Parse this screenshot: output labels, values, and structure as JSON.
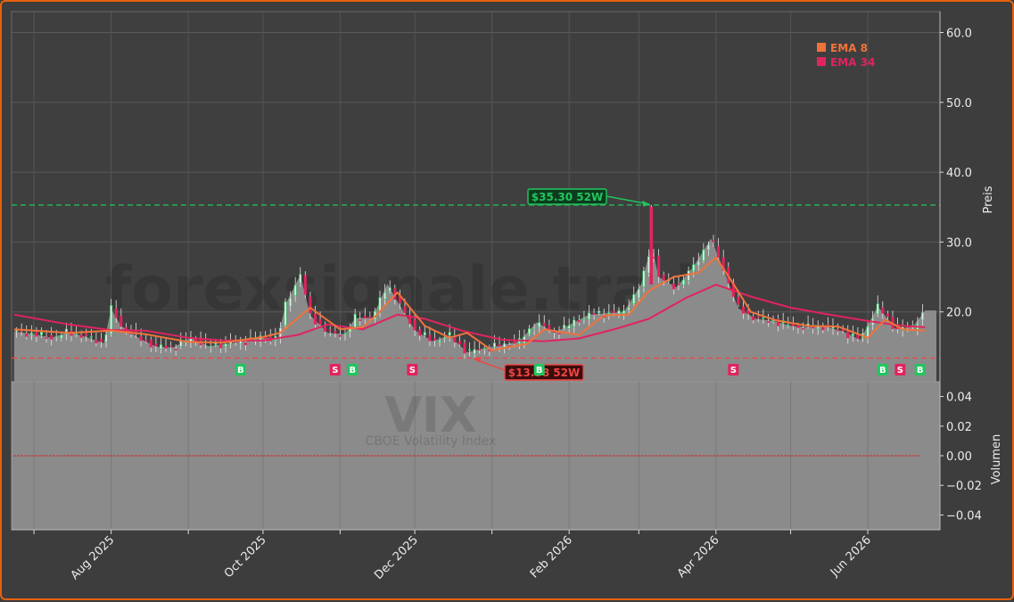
{
  "chart_data": {
    "type": "candlestick",
    "symbol": "VIX",
    "subtitle": "CBOE Volatility Index",
    "watermark": "forexsignale.trade",
    "y_label": "Preis",
    "volume_label": "Volumen",
    "y_ticks": [
      20.0,
      30.0,
      40.0,
      50.0,
      60.0
    ],
    "y_tick_labels": [
      "20.0",
      "30.0",
      "40.0",
      "50.0",
      "60.0"
    ],
    "ylim": [
      10.0,
      63.0
    ],
    "volume_ticks": [
      0.04,
      0.02,
      0.0,
      -0.02,
      -0.04
    ],
    "volume_tick_labels": [
      "0.04",
      "0.02",
      "0.00",
      "−0.02",
      "−0.04"
    ],
    "volume_ylim": [
      -0.05,
      0.05
    ],
    "x_range": [
      "2025-06-22",
      "2026-06-30"
    ],
    "x_ticks": [
      "2025-07-01",
      "2025-08-01",
      "2025-09-01",
      "2025-10-01",
      "2025-11-01",
      "2025-12-01",
      "2026-01-01",
      "2026-02-01",
      "2026-03-01",
      "2026-04-01",
      "2026-05-01",
      "2026-06-01"
    ],
    "x_tick_labels": [
      "",
      "Aug 2025",
      "",
      "Oct 2025",
      "",
      "Dec 2025",
      "",
      "Feb 2026",
      "",
      "Apr 2026",
      "",
      "Jun 2026"
    ],
    "close_series": [
      [
        "2025-06-23",
        17.2
      ],
      [
        "2025-07-01",
        16.8
      ],
      [
        "2025-07-08",
        16.3
      ],
      [
        "2025-07-15",
        17.1
      ],
      [
        "2025-07-22",
        16.4
      ],
      [
        "2025-07-29",
        15.5
      ],
      [
        "2025-08-01",
        20.4
      ],
      [
        "2025-08-05",
        18.0
      ],
      [
        "2025-08-12",
        16.3
      ],
      [
        "2025-08-19",
        15.0
      ],
      [
        "2025-08-26",
        14.9
      ],
      [
        "2025-09-02",
        16.3
      ],
      [
        "2025-09-09",
        15.1
      ],
      [
        "2025-09-16",
        15.4
      ],
      [
        "2025-09-23",
        15.8
      ],
      [
        "2025-09-30",
        16.3
      ],
      [
        "2025-10-07",
        16.2
      ],
      [
        "2025-10-10",
        21.0
      ],
      [
        "2025-10-16",
        25.3
      ],
      [
        "2025-10-20",
        19.5
      ],
      [
        "2025-10-27",
        17.0
      ],
      [
        "2025-11-03",
        16.8
      ],
      [
        "2025-11-07",
        19.1
      ],
      [
        "2025-11-14",
        19.2
      ],
      [
        "2025-11-20",
        24.0
      ],
      [
        "2025-11-24",
        21.5
      ],
      [
        "2025-12-01",
        17.4
      ],
      [
        "2025-12-08",
        15.8
      ],
      [
        "2025-12-15",
        16.6
      ],
      [
        "2025-12-22",
        14.2
      ],
      [
        "2025-12-29",
        14.8
      ],
      [
        "2026-01-05",
        15.2
      ],
      [
        "2026-01-12",
        15.8
      ],
      [
        "2026-01-19",
        18.5
      ],
      [
        "2026-01-26",
        17.0
      ],
      [
        "2026-02-02",
        18.3
      ],
      [
        "2026-02-09",
        19.6
      ],
      [
        "2026-02-16",
        19.8
      ],
      [
        "2026-02-23",
        20.0
      ],
      [
        "2026-03-02",
        24.0
      ],
      [
        "2026-03-06",
        29.5
      ],
      [
        "2026-03-09",
        25.0
      ],
      [
        "2026-03-16",
        23.5
      ],
      [
        "2026-03-23",
        26.5
      ],
      [
        "2026-03-30",
        30.5
      ],
      [
        "2026-04-03",
        27.0
      ],
      [
        "2026-04-10",
        20.5
      ],
      [
        "2026-04-17",
        19.0
      ],
      [
        "2026-04-24",
        18.7
      ],
      [
        "2026-05-01",
        18.0
      ],
      [
        "2026-05-08",
        17.8
      ],
      [
        "2026-05-15",
        17.9
      ],
      [
        "2026-05-22",
        17.2
      ],
      [
        "2026-05-29",
        16.0
      ],
      [
        "2026-06-05",
        20.8
      ],
      [
        "2026-06-12",
        17.6
      ],
      [
        "2026-06-19",
        17.8
      ],
      [
        "2026-06-24",
        20.2
      ]
    ],
    "ema_8_series": [
      [
        "2025-06-23",
        17.5
      ],
      [
        "2025-07-15",
        17.0
      ],
      [
        "2025-08-01",
        17.3
      ],
      [
        "2025-08-15",
        16.8
      ],
      [
        "2025-09-01",
        15.7
      ],
      [
        "2025-09-15",
        15.6
      ],
      [
        "2025-10-01",
        16.4
      ],
      [
        "2025-10-08",
        17.0
      ],
      [
        "2025-10-20",
        20.6
      ],
      [
        "2025-11-01",
        17.5
      ],
      [
        "2025-11-10",
        17.8
      ],
      [
        "2025-11-15",
        19.3
      ],
      [
        "2025-11-24",
        22.8
      ],
      [
        "2025-12-05",
        18.0
      ],
      [
        "2025-12-15",
        16.3
      ],
      [
        "2025-12-22",
        17.0
      ],
      [
        "2026-01-01",
        14.5
      ],
      [
        "2026-01-15",
        15.4
      ],
      [
        "2026-01-22",
        17.5
      ],
      [
        "2026-02-05",
        16.7
      ],
      [
        "2026-02-15",
        19.5
      ],
      [
        "2026-02-25",
        19.6
      ],
      [
        "2026-03-05",
        23.0
      ],
      [
        "2026-03-15",
        25.0
      ],
      [
        "2026-03-25",
        25.6
      ],
      [
        "2026-04-01",
        27.8
      ],
      [
        "2026-04-08",
        24.0
      ],
      [
        "2026-04-15",
        20.0
      ],
      [
        "2026-04-25",
        18.8
      ],
      [
        "2026-05-08",
        18.0
      ],
      [
        "2026-05-20",
        17.9
      ],
      [
        "2026-06-01",
        16.3
      ],
      [
        "2026-06-08",
        18.9
      ],
      [
        "2026-06-15",
        17.5
      ],
      [
        "2026-06-24",
        17.3
      ]
    ],
    "ema_34_series": [
      [
        "2025-06-23",
        19.6
      ],
      [
        "2025-07-15",
        18.2
      ],
      [
        "2025-08-01",
        17.4
      ],
      [
        "2025-08-15",
        17.3
      ],
      [
        "2025-09-01",
        16.3
      ],
      [
        "2025-09-15",
        15.9
      ],
      [
        "2025-10-01",
        15.9
      ],
      [
        "2025-10-15",
        16.7
      ],
      [
        "2025-10-27",
        18.2
      ],
      [
        "2025-11-10",
        17.5
      ],
      [
        "2025-11-24",
        19.6
      ],
      [
        "2025-12-05",
        19.0
      ],
      [
        "2025-12-20",
        17.3
      ],
      [
        "2026-01-05",
        16.0
      ],
      [
        "2026-01-22",
        15.8
      ],
      [
        "2026-02-05",
        16.2
      ],
      [
        "2026-02-20",
        17.6
      ],
      [
        "2026-03-05",
        19.0
      ],
      [
        "2026-03-20",
        22.0
      ],
      [
        "2026-04-01",
        23.9
      ],
      [
        "2026-04-15",
        22.2
      ],
      [
        "2026-05-01",
        20.6
      ],
      [
        "2026-05-15",
        19.7
      ],
      [
        "2026-06-01",
        18.7
      ],
      [
        "2026-06-15",
        18.0
      ],
      [
        "2026-06-24",
        17.8
      ]
    ],
    "candle_sample_step_days": 2,
    "high_52w": {
      "value": 35.3,
      "date": "2026-03-06",
      "label": "$35.30 52W",
      "color": "#22c55e"
    },
    "low_52w": {
      "value": 13.38,
      "date": "2025-12-24",
      "label": "$13.38 52W",
      "color": "#ef4444"
    },
    "signals": [
      {
        "date": "2025-09-22",
        "type": "B"
      },
      {
        "date": "2025-10-30",
        "type": "S"
      },
      {
        "date": "2025-11-06",
        "type": "B"
      },
      {
        "date": "2025-11-30",
        "type": "S"
      },
      {
        "date": "2026-01-20",
        "type": "B"
      },
      {
        "date": "2026-04-08",
        "type": "S"
      },
      {
        "date": "2026-06-07",
        "type": "B"
      },
      {
        "date": "2026-06-14",
        "type": "S"
      },
      {
        "date": "2026-06-22",
        "type": "B"
      }
    ],
    "legend": [
      {
        "name": "EMA 8",
        "color": "#f0733b"
      },
      {
        "name": "EMA 34",
        "color": "#e0245e"
      }
    ],
    "legend_position": "top-right",
    "grid": true,
    "colors": {
      "up": "#22c55e",
      "down": "#e0245e",
      "area": "#8b8b8b",
      "background": "#3d3d3d",
      "frame": "#e8620e"
    }
  }
}
